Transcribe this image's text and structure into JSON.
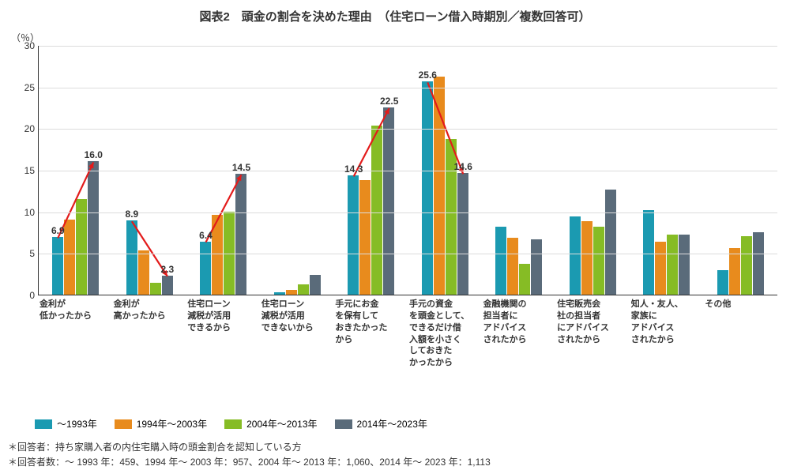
{
  "title": "図表2　頭金の割合を決めた理由　（住宅ローン借入時期別／複数回答可）",
  "y_axis": {
    "unit": "（％）",
    "min": 0,
    "max": 30,
    "step": 5
  },
  "series_colors": {
    "s0": "#1b9ab1",
    "s1": "#e88b1d",
    "s2": "#86bc25",
    "s3": "#5a6b7a"
  },
  "legend": {
    "s0": "～1993年",
    "s1": "1994年～2003年",
    "s2": "2004年～2013年",
    "s3": "2014年～2023年"
  },
  "categories": [
    {
      "label": "金利が\n低かったから",
      "values": [
        6.9,
        9.0,
        11.5,
        16.0
      ],
      "show": {
        "0": "6.9",
        "3": "16.0"
      },
      "arrow": {
        "from": 0,
        "to": 3
      }
    },
    {
      "label": "金利が\n高かったから",
      "values": [
        8.9,
        5.3,
        1.4,
        2.3
      ],
      "show": {
        "0": "8.9",
        "3": "2.3"
      },
      "arrow": {
        "from": 0,
        "to": 3
      }
    },
    {
      "label": "住宅ローン\n減税が活用\nできるから",
      "values": [
        6.4,
        9.6,
        10.0,
        14.5
      ],
      "show": {
        "0": "6.4",
        "3": "14.5"
      },
      "arrow": {
        "from": 0,
        "to": 3
      }
    },
    {
      "label": "住宅ローン\n減税が活用\nできないから",
      "values": [
        0.3,
        0.6,
        1.2,
        2.4
      ]
    },
    {
      "label": "手元にお金\nを保有して\nおきたかった\nから",
      "values": [
        14.3,
        13.8,
        20.3,
        22.5
      ],
      "show": {
        "0": "14.3",
        "3": "22.5"
      },
      "arrow": {
        "from": 0,
        "to": 3
      }
    },
    {
      "label": "手元の資金\nを頭金として、\nできるだけ借\n入額を小さく\nしておきた\nかったから",
      "values": [
        25.6,
        26.2,
        18.7,
        14.6
      ],
      "show": {
        "0": "25.6",
        "3": "14.6"
      },
      "arrow": {
        "from": 0,
        "to": 3
      }
    },
    {
      "label": "金融機関の\n担当者に\nアドバイス\nされたから",
      "values": [
        8.2,
        6.8,
        3.7,
        6.6
      ]
    },
    {
      "label": "住宅販売会\n社の担当者\nにアドバイス\nされたから",
      "values": [
        9.4,
        8.8,
        8.2,
        12.6
      ]
    },
    {
      "label": "知人・友人、\n家族に\nアドバイス\nされたから",
      "values": [
        10.2,
        6.4,
        7.2,
        7.2
      ]
    },
    {
      "label": "その他",
      "values": [
        2.9,
        5.6,
        7.0,
        7.5
      ]
    }
  ],
  "arrow_color": "#e31b1b",
  "footnotes": [
    "＊回答者：持ち家購入者の内住宅購入時の頭金割合を認知している方",
    "＊回答者数：～ 1993 年：459、1994 年～ 2003 年：957、2004 年～ 2013 年：1,060、2014 年～ 2023 年：1,113"
  ]
}
